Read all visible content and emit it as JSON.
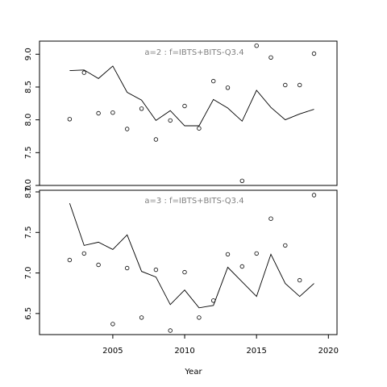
{
  "chart_data": [
    {
      "type": "line",
      "title": "a=2  :  f=IBTS+BITS-Q3.4",
      "xlim": [
        1999.9,
        2020.6
      ],
      "ylim": [
        7.0,
        9.2
      ],
      "yticks": [
        7.0,
        7.5,
        8.0,
        8.5,
        9.0
      ],
      "ytick_labels": [
        "7.0",
        "7.5",
        "8.0",
        "8.5",
        "9.0"
      ],
      "series": [
        {
          "kind": "line",
          "x": [
            2002,
            2003,
            2004,
            2005,
            2006,
            2007,
            2008,
            2009,
            2010,
            2011,
            2012,
            2013,
            2014,
            2015,
            2016,
            2017,
            2018,
            2019
          ],
          "values": [
            8.75,
            8.76,
            8.63,
            8.82,
            8.42,
            8.3,
            7.99,
            8.14,
            7.91,
            7.91,
            8.31,
            8.18,
            7.98,
            8.45,
            8.19,
            8.0,
            8.09,
            8.16
          ]
        },
        {
          "kind": "points",
          "x": [
            2002,
            2003,
            2004,
            2005,
            2006,
            2007,
            2008,
            2009,
            2010,
            2011,
            2012,
            2013,
            2014,
            2015,
            2016,
            2017,
            2018,
            2019
          ],
          "values": [
            8.01,
            8.72,
            8.1,
            8.11,
            7.86,
            8.17,
            7.7,
            7.99,
            8.21,
            7.87,
            8.59,
            8.49,
            7.07,
            9.13,
            8.95,
            8.53,
            8.53,
            9.01
          ]
        }
      ]
    },
    {
      "type": "line",
      "title": "a=3  :  f=IBTS+BITS-Q3.4",
      "xlim": [
        1999.9,
        2020.6
      ],
      "ylim": [
        6.24,
        8.02
      ],
      "yticks": [
        6.5,
        7.0,
        7.5,
        8.0
      ],
      "ytick_labels": [
        "6.5",
        "7.0",
        "7.5",
        "8.0"
      ],
      "xticks": [
        2005,
        2010,
        2015,
        2020
      ],
      "xtick_labels": [
        "2005",
        "2010",
        "2015",
        "2020"
      ],
      "xlabel": "Year",
      "series": [
        {
          "kind": "line",
          "x": [
            2002,
            2003,
            2004,
            2005,
            2006,
            2007,
            2008,
            2009,
            2010,
            2011,
            2012,
            2013,
            2014,
            2015,
            2016,
            2017,
            2018,
            2019
          ],
          "values": [
            7.86,
            7.34,
            7.38,
            7.29,
            7.47,
            7.02,
            6.95,
            6.61,
            6.79,
            6.57,
            6.6,
            7.07,
            6.89,
            6.71,
            7.23,
            6.87,
            6.71,
            6.87
          ]
        },
        {
          "kind": "points",
          "x": [
            2002,
            2003,
            2004,
            2005,
            2006,
            2007,
            2008,
            2009,
            2010,
            2011,
            2012,
            2013,
            2014,
            2015,
            2016,
            2017,
            2018,
            2019
          ],
          "values": [
            7.16,
            7.24,
            7.1,
            6.37,
            7.06,
            6.45,
            7.04,
            6.29,
            7.01,
            6.45,
            6.66,
            7.23,
            7.08,
            7.24,
            7.67,
            7.34,
            6.91,
            7.96
          ]
        }
      ]
    }
  ]
}
